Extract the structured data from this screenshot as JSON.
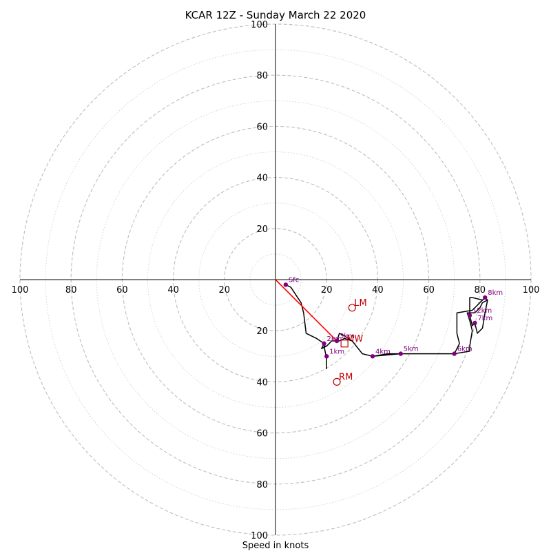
{
  "chart_data": {
    "type": "hodograph",
    "title": "KCAR 12Z - Sunday March 22 2020",
    "xlabel": "Speed in knots",
    "ring_max": 100,
    "ring_step": 20,
    "tick_labels": {
      "x_left": [
        "100",
        "80",
        "60",
        "40",
        "20"
      ],
      "x_right": [
        "20",
        "40",
        "60",
        "80",
        "100"
      ],
      "y_top": [
        "20",
        "40",
        "60",
        "80",
        "100"
      ],
      "y_bottom": [
        "20",
        "40",
        "60",
        "80",
        "100"
      ]
    },
    "grid": "dashed rings every 20 kt, dotted rings at odd 10s",
    "trace_color": "#000000",
    "height_marker_color": "#800080",
    "motion_color": "#c00000",
    "trace": [
      [
        4,
        -2
      ],
      [
        6,
        -3
      ],
      [
        8,
        -6
      ],
      [
        10,
        -9
      ],
      [
        11,
        -13
      ],
      [
        12,
        -21
      ],
      [
        16,
        -23
      ],
      [
        19,
        -25
      ],
      [
        18,
        -27
      ],
      [
        20,
        -26
      ],
      [
        21,
        -25
      ],
      [
        22,
        -24
      ],
      [
        24,
        -24
      ],
      [
        25,
        -21
      ],
      [
        27,
        -22
      ],
      [
        30,
        -24
      ],
      [
        34,
        -29
      ],
      [
        38,
        -30
      ],
      [
        44,
        -29
      ],
      [
        49,
        -29
      ],
      [
        70,
        -29
      ],
      [
        76,
        -28
      ],
      [
        76,
        -26
      ],
      [
        77,
        -20
      ],
      [
        76,
        -16
      ],
      [
        75,
        -13
      ],
      [
        78,
        -13
      ],
      [
        80,
        -11
      ],
      [
        81,
        -9
      ],
      [
        83,
        -8
      ],
      [
        82,
        -7
      ],
      [
        81,
        -8
      ],
      [
        77,
        -7
      ],
      [
        76,
        -7
      ],
      [
        76,
        -14
      ],
      [
        77,
        -18
      ],
      [
        78,
        -17
      ],
      [
        79,
        -21
      ],
      [
        80,
        -20
      ],
      [
        81,
        -19
      ],
      [
        82,
        -13
      ],
      [
        83,
        -8
      ],
      [
        82,
        -7
      ],
      [
        81,
        -8
      ],
      [
        77,
        -12
      ],
      [
        71,
        -13
      ],
      [
        71,
        -21
      ],
      [
        72,
        -25
      ],
      [
        70,
        -29
      ],
      [
        49,
        -29
      ],
      [
        38,
        -30
      ],
      [
        34,
        -29
      ],
      [
        30,
        -24
      ],
      [
        27,
        -23
      ],
      [
        25,
        -24
      ],
      [
        22,
        -24
      ],
      [
        20,
        -26
      ],
      [
        19,
        -26
      ],
      [
        20,
        -31
      ],
      [
        20,
        -35
      ]
    ],
    "height_markers": [
      {
        "label": "Sfc",
        "u": 4,
        "v": -2
      },
      {
        "label": "1km",
        "u": 20,
        "v": -30
      },
      {
        "label": "2km",
        "u": 19,
        "v": -25
      },
      {
        "label": "3km",
        "u": 24,
        "v": -24
      },
      {
        "label": "4km",
        "u": 38,
        "v": -30
      },
      {
        "label": "5km",
        "u": 49,
        "v": -29
      },
      {
        "label": "6km",
        "u": 70,
        "v": -29
      },
      {
        "label": "7km",
        "u": 78,
        "v": -17
      },
      {
        "label": "8km",
        "u": 82,
        "v": -7
      },
      {
        "label": "12km",
        "u": 76,
        "v": -14
      }
    ],
    "storm_motions": [
      {
        "label": "LM",
        "u": 30,
        "v": -11,
        "shape": "circle"
      },
      {
        "label": "MW",
        "u": 27,
        "v": -25,
        "shape": "square"
      },
      {
        "label": "RM",
        "u": 24,
        "v": -40,
        "shape": "circle"
      }
    ],
    "shear_vector": {
      "from": [
        0,
        0
      ],
      "to": [
        24,
        -24
      ],
      "color": "#ff0000"
    }
  }
}
